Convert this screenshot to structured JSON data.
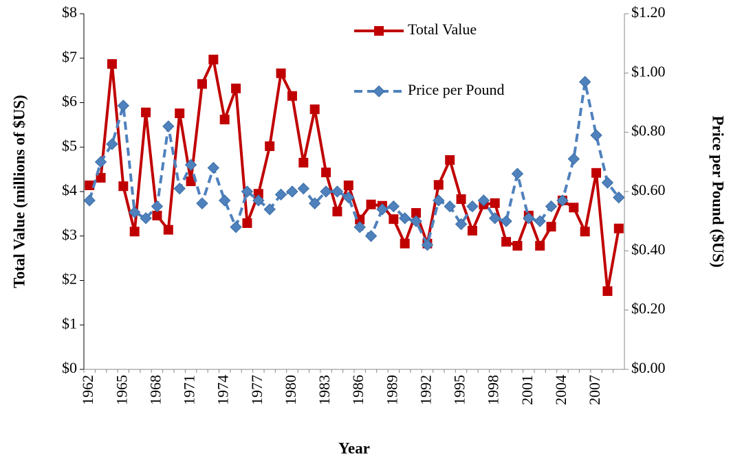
{
  "chart_data": {
    "type": "line",
    "x_label": "Year",
    "y_label": "Total Value (millions  of $US)",
    "y2_label": "Price per Pound ($US)",
    "categories": [
      "1962",
      null,
      null,
      "1965",
      null,
      null,
      "1968",
      null,
      null,
      "1971",
      null,
      null,
      "1974",
      null,
      null,
      "1977",
      null,
      null,
      "1980",
      null,
      null,
      "1983",
      null,
      null,
      "1986",
      null,
      null,
      "1989",
      null,
      null,
      "1992",
      null,
      null,
      "1995",
      null,
      null,
      "1998",
      null,
      null,
      "2001",
      null,
      null,
      "2004",
      null,
      null,
      "2007",
      null,
      null
    ],
    "ylim": [
      0,
      8
    ],
    "yticks": [
      {
        "value": 0,
        "label": "$0"
      },
      {
        "value": 1,
        "label": "$1"
      },
      {
        "value": 2,
        "label": "$2"
      },
      {
        "value": 3,
        "label": "$3"
      },
      {
        "value": 4,
        "label": "$4"
      },
      {
        "value": 5,
        "label": "$5"
      },
      {
        "value": 6,
        "label": "$6"
      },
      {
        "value": 7,
        "label": "$7"
      },
      {
        "value": 8,
        "label": "$8"
      }
    ],
    "y2lim": [
      0,
      1.2
    ],
    "y2ticks": [
      {
        "value": 0,
        "label": "$0.00"
      },
      {
        "value": 0.2,
        "label": "$0.20"
      },
      {
        "value": 0.4,
        "label": "$0.40"
      },
      {
        "value": 0.6,
        "label": "$0.60"
      },
      {
        "value": 0.8,
        "label": "$0.80"
      },
      {
        "value": 1.0,
        "label": "$1.00"
      },
      {
        "value": 1.2,
        "label": "$1.20"
      }
    ],
    "legend": "top-right",
    "series": [
      {
        "name": "Total Value",
        "color": "#c00000",
        "marker": "square",
        "axis": "y",
        "values": [
          4.14,
          4.31,
          6.87,
          4.12,
          3.1,
          5.78,
          3.46,
          3.14,
          5.76,
          4.23,
          6.42,
          6.97,
          5.62,
          6.32,
          3.29,
          3.95,
          5.02,
          6.66,
          6.15,
          4.65,
          5.85,
          4.43,
          3.55,
          4.14,
          3.37,
          3.71,
          3.68,
          3.38,
          2.83,
          3.52,
          2.83,
          4.15,
          4.71,
          3.83,
          3.12,
          3.71,
          3.74,
          2.87,
          2.78,
          3.46,
          2.78,
          3.21,
          3.8,
          3.64,
          3.1,
          4.42,
          1.76,
          3.17
        ]
      },
      {
        "name": "Price per Pound",
        "color": "#4f81bd",
        "marker": "diamond",
        "axis": "y2",
        "dashed": true,
        "values": [
          0.57,
          0.7,
          0.76,
          0.89,
          0.53,
          0.51,
          0.55,
          0.82,
          0.61,
          0.69,
          0.56,
          0.68,
          0.57,
          0.48,
          0.6,
          0.57,
          0.54,
          0.59,
          0.6,
          0.61,
          0.56,
          0.6,
          0.6,
          0.58,
          0.48,
          0.45,
          0.54,
          0.55,
          0.51,
          0.5,
          0.42,
          0.57,
          0.55,
          0.49,
          0.55,
          0.57,
          0.51,
          0.5,
          0.66,
          0.51,
          0.5,
          0.55,
          0.57,
          0.71,
          0.97,
          0.79,
          0.63,
          0.58
        ]
      }
    ]
  }
}
